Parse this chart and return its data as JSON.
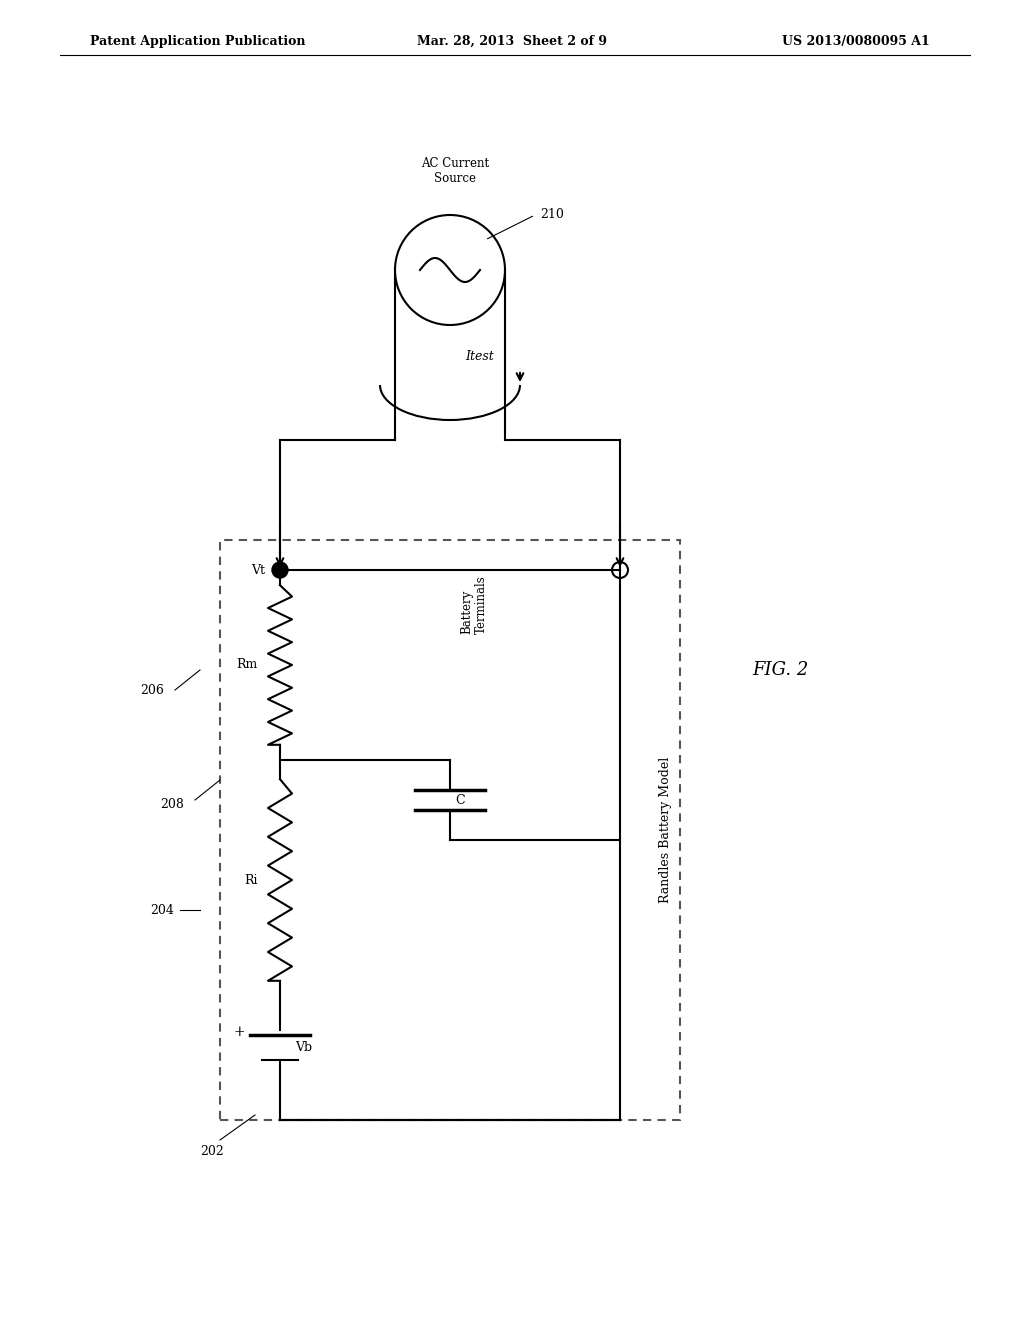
{
  "header_left": "Patent Application Publication",
  "header_center": "Mar. 28, 2013  Sheet 2 of 9",
  "header_right": "US 2013/0080095 A1",
  "fig_label": "FIG. 2",
  "background_color": "#ffffff",
  "line_color": "#000000",
  "dashed_color": "#555555",
  "labels": {
    "ac_source": "AC Current\nSource",
    "ac_ref": "210",
    "Vt": "Vt",
    "battery_terminals": "Battery\nTerminals",
    "Rm": "Rm",
    "C": "C",
    "Ri": "Ri",
    "Vb": "Vb",
    "Itest": "Itest",
    "randles": "Randles Battery Model",
    "ref202": "202",
    "ref204": "204",
    "ref206": "206",
    "ref208": "208"
  }
}
